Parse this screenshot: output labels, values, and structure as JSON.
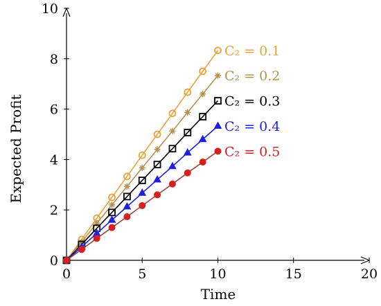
{
  "chart_data": {
    "type": "line",
    "title": "",
    "xlabel": "Time",
    "ylabel": "Expected Profit",
    "xlim": [
      0,
      20
    ],
    "ylim": [
      0,
      10
    ],
    "x_ticks": [
      0,
      5,
      10,
      15,
      20
    ],
    "y_ticks": [
      0,
      2,
      4,
      6,
      8,
      10
    ],
    "grid": false,
    "legend": "inline labels at right end of each line",
    "x": [
      0,
      1,
      2,
      3,
      4,
      5,
      6,
      7,
      8,
      9,
      10
    ],
    "series": [
      {
        "name": "C₂ = 0.1",
        "color": "#E8A33A",
        "marker": "circle-open",
        "values": [
          0,
          0.83,
          1.67,
          2.5,
          3.33,
          4.17,
          5.0,
          5.83,
          6.67,
          7.5,
          8.33
        ]
      },
      {
        "name": "C₂ = 0.2",
        "color": "#B8904F",
        "marker": "star",
        "values": [
          0,
          0.73,
          1.47,
          2.2,
          2.93,
          3.67,
          4.4,
          5.13,
          5.87,
          6.6,
          7.33
        ]
      },
      {
        "name": "C₂ = 0.3",
        "color": "#000000",
        "marker": "square-open",
        "values": [
          0,
          0.63,
          1.27,
          1.9,
          2.53,
          3.17,
          3.8,
          4.43,
          5.07,
          5.7,
          6.33
        ]
      },
      {
        "name": "C₂ = 0.4",
        "color": "#1F1FE0",
        "marker": "triangle",
        "values": [
          0,
          0.53,
          1.07,
          1.6,
          2.13,
          2.67,
          3.2,
          3.73,
          4.27,
          4.8,
          5.33
        ]
      },
      {
        "name": "C₂ = 0.5",
        "color": "#D62020",
        "line_color": "#A0443A",
        "marker": "circle-filled",
        "values": [
          0,
          0.43,
          0.87,
          1.3,
          1.73,
          2.17,
          2.6,
          3.03,
          3.47,
          3.9,
          4.33
        ]
      }
    ]
  }
}
